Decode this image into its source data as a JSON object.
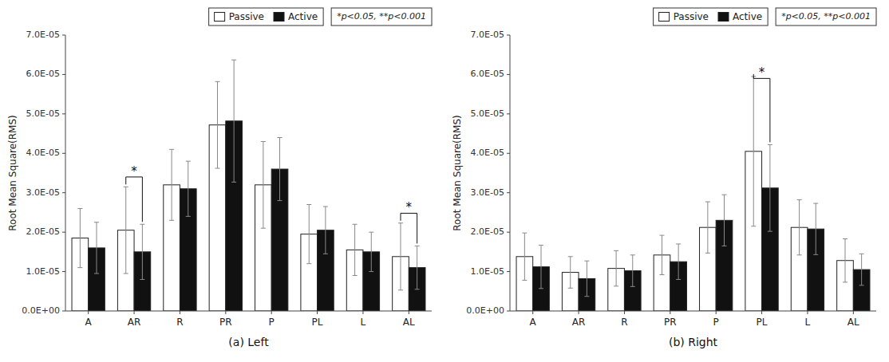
{
  "chart_data": [
    {
      "type": "bar",
      "xlabel": "(a)  Left",
      "ylabel": "Root Mean Square(RMS)",
      "categories": [
        "A",
        "AR",
        "R",
        "PR",
        "P",
        "PL",
        "L",
        "AL"
      ],
      "series": [
        {
          "name": "Passive",
          "color": "#ffffff",
          "values": [
            1.85e-05,
            2.05e-05,
            3.2e-05,
            4.72e-05,
            3.2e-05,
            1.95e-05,
            1.55e-05,
            1.38e-05
          ],
          "errors": [
            7.5e-06,
            1.1e-05,
            9e-06,
            1.1e-05,
            1.1e-05,
            7.5e-06,
            6.5e-06,
            8.5e-06
          ]
        },
        {
          "name": "Active",
          "color": "#111111",
          "values": [
            1.6e-05,
            1.5e-05,
            3.1e-05,
            4.82e-05,
            3.6e-05,
            2.05e-05,
            1.5e-05,
            1.1e-05
          ],
          "errors": [
            6.5e-06,
            7e-06,
            7e-06,
            1.55e-05,
            8e-06,
            6e-06,
            5e-06,
            5.5e-06
          ]
        }
      ],
      "ylim": [
        0,
        7e-05
      ],
      "yticks": [
        {
          "value": 0,
          "label": "0.0E+00"
        },
        {
          "value": 1e-05,
          "label": "1.0E-05"
        },
        {
          "value": 2e-05,
          "label": "2.0E-05"
        },
        {
          "value": 3e-05,
          "label": "3.0E-05"
        },
        {
          "value": 4e-05,
          "label": "4.0E-05"
        },
        {
          "value": 5e-05,
          "label": "5.0E-05"
        },
        {
          "value": 6e-05,
          "label": "6.0E-05"
        },
        {
          "value": 7e-05,
          "label": "7.0E-05"
        }
      ],
      "annotations": [
        {
          "text": "*",
          "category": "AR",
          "y": 3.4e-05
        },
        {
          "text": "*",
          "category": "AL",
          "y": 2.48e-05
        },
        {
          "text": "*p<0.05, **p<0.001"
        }
      ],
      "legend": "upper right",
      "grid": false
    },
    {
      "type": "bar",
      "xlabel": "(b)  Right",
      "ylabel": "Root Mean Square(RMS)",
      "categories": [
        "A",
        "AR",
        "R",
        "PR",
        "P",
        "PL",
        "L",
        "AL"
      ],
      "series": [
        {
          "name": "Passive",
          "color": "#ffffff",
          "values": [
            1.38e-05,
            9.8e-06,
            1.08e-05,
            1.42e-05,
            2.12e-05,
            4.05e-05,
            2.12e-05,
            1.28e-05
          ],
          "errors": [
            6e-06,
            4e-06,
            4.5e-06,
            5e-06,
            6.5e-06,
            1.9e-05,
            7e-06,
            5.5e-06
          ]
        },
        {
          "name": "Active",
          "color": "#111111",
          "values": [
            1.12e-05,
            8.2e-06,
            1.02e-05,
            1.25e-05,
            2.3e-05,
            3.12e-05,
            2.08e-05,
            1.05e-05
          ],
          "errors": [
            5.5e-06,
            4.5e-06,
            4e-06,
            4.5e-06,
            6.5e-06,
            1.1e-05,
            6.5e-06,
            4e-06
          ]
        }
      ],
      "ylim": [
        0,
        7e-05
      ],
      "yticks": [
        {
          "value": 0,
          "label": "0.0E+00"
        },
        {
          "value": 1e-05,
          "label": "1.0E-05"
        },
        {
          "value": 2e-05,
          "label": "2.0E-05"
        },
        {
          "value": 3e-05,
          "label": "3.0E-05"
        },
        {
          "value": 4e-05,
          "label": "4.0E-05"
        },
        {
          "value": 5e-05,
          "label": "5.0E-05"
        },
        {
          "value": 6e-05,
          "label": "6.0E-05"
        },
        {
          "value": 7e-05,
          "label": "7.0E-05"
        }
      ],
      "annotations": [
        {
          "text": "*",
          "category": "PL",
          "y": 5.9e-05
        },
        {
          "text": "*p<0.05, **p<0.001"
        }
      ],
      "legend": "upper right",
      "grid": false
    }
  ]
}
